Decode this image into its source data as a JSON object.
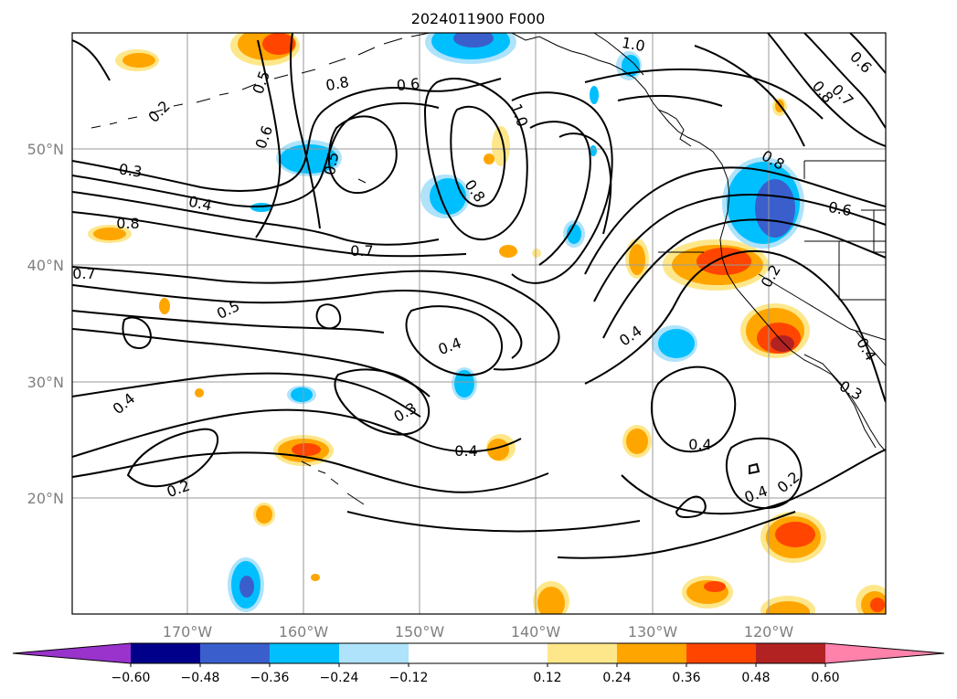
{
  "title": "2024011900 F000",
  "map": {
    "lat_labels": [
      "50°N",
      "40°N",
      "30°N",
      "20°N"
    ],
    "lon_labels": [
      "170°W",
      "160°W",
      "150°W",
      "140°W",
      "130°W",
      "120°W"
    ],
    "contour_labels": [
      "1.0",
      "0.6",
      "0.7",
      "0.8",
      "0.5",
      "0.2",
      "0.8",
      "0.6",
      "1.0",
      "0.6",
      "0.5",
      "0.3",
      "0.4",
      "0.8",
      "0.8",
      "0.8",
      "0.6",
      "0.7",
      "0.7",
      "0.5",
      "0.4",
      "0.4",
      "0.4",
      "0.4",
      "0.3",
      "0.4",
      "0.4",
      "0.2",
      "0.2",
      "0.4",
      "0.2",
      "0.3"
    ],
    "colors": {
      "purple": "#9933cc",
      "navy": "#00008b",
      "medblue": "#3a5fcd",
      "cyan": "#00bfff",
      "lightblue": "#aee3fb",
      "white": "#ffffff",
      "yellow": "#fde78a",
      "orange": "#ffa500",
      "redorange": "#ff4500",
      "darkred": "#b22222",
      "pink": "#ff82ab"
    }
  },
  "colorbar": {
    "tick_labels": [
      "−0.60",
      "−0.48",
      "−0.36",
      "−0.24",
      "−0.12",
      "0.12",
      "0.24",
      "0.36",
      "0.48",
      "0.60"
    ],
    "boundaries": [
      -0.72,
      -0.6,
      -0.48,
      -0.36,
      -0.24,
      -0.12,
      0.12,
      0.24,
      0.36,
      0.48,
      0.6,
      0.72
    ],
    "colors": [
      "#00008b",
      "#3a5fcd",
      "#00bfff",
      "#aee3fb",
      "#ffffff",
      "#fde78a",
      "#ffa500",
      "#ff4500",
      "#b22222"
    ],
    "under_color": "#9933cc",
    "over_color": "#ff82ab"
  }
}
